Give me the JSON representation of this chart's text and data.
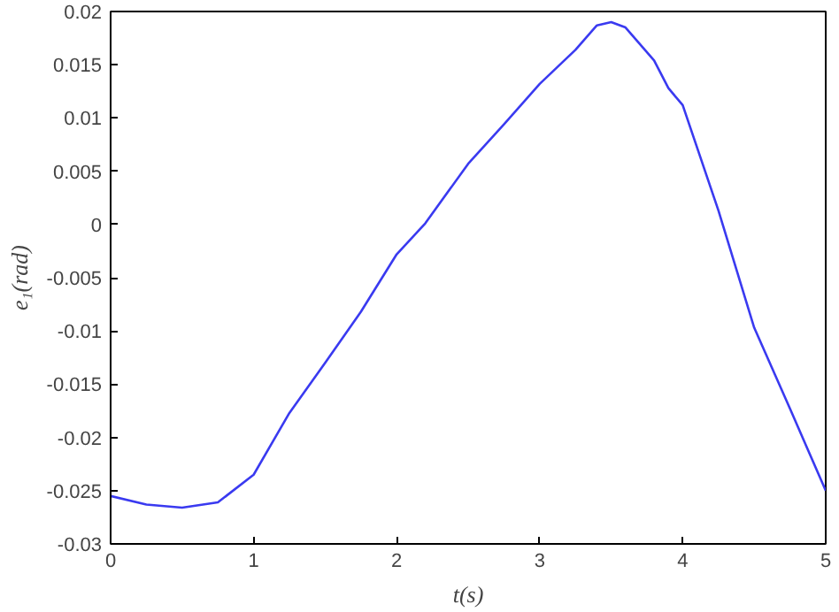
{
  "chart_data": {
    "type": "line",
    "xlabel": "t(s)",
    "ylabel": "e₁(rad)",
    "x": [
      0,
      0.25,
      0.5,
      0.75,
      1.0,
      1.25,
      1.5,
      1.75,
      2.0,
      2.2,
      2.5,
      2.75,
      3.0,
      3.25,
      3.4,
      3.5,
      3.6,
      3.8,
      3.9,
      4.0,
      4.25,
      4.5,
      4.75,
      5.0
    ],
    "series": [
      {
        "color": "#3a3af0",
        "values": [
          -0.0255,
          -0.0263,
          -0.0266,
          -0.0261,
          -0.0235,
          -0.0177,
          -0.013,
          -0.0082,
          -0.0028,
          0.0001,
          0.0057,
          0.0094,
          0.0132,
          0.0164,
          0.0187,
          0.019,
          0.0185,
          0.0154,
          0.0128,
          0.0112,
          0.0013,
          -0.0097,
          -0.0173,
          -0.025
        ]
      }
    ],
    "xlim": [
      0,
      5
    ],
    "ylim": [
      -0.03,
      0.02
    ],
    "xticks": [
      0,
      1,
      2,
      3,
      4,
      5
    ],
    "yticks": [
      -0.03,
      -0.025,
      -0.02,
      -0.015,
      -0.01,
      -0.005,
      0,
      0.005,
      0.01,
      0.015,
      0.02
    ],
    "grid": false
  }
}
